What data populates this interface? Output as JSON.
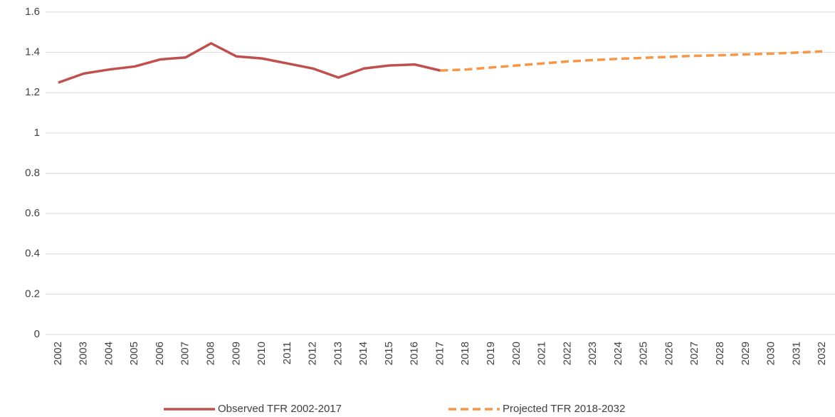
{
  "chart_data": {
    "type": "line",
    "categories": [
      "2002",
      "2003",
      "2004",
      "2005",
      "2006",
      "2007",
      "2008",
      "2009",
      "2010",
      "2011",
      "2012",
      "2013",
      "2014",
      "2015",
      "2016",
      "2017",
      "2018",
      "2019",
      "2020",
      "2021",
      "2022",
      "2023",
      "2024",
      "2025",
      "2026",
      "2027",
      "2028",
      "2029",
      "2030",
      "2031",
      "2032"
    ],
    "series": [
      {
        "name": "Observed TFR 2002-2017",
        "color": "#c0504d",
        "dashed": false,
        "values": [
          1.25,
          1.295,
          1.315,
          1.33,
          1.365,
          1.375,
          1.445,
          1.38,
          1.37,
          1.345,
          1.32,
          1.275,
          1.32,
          1.335,
          1.34,
          1.31,
          null,
          null,
          null,
          null,
          null,
          null,
          null,
          null,
          null,
          null,
          null,
          null,
          null,
          null,
          null
        ]
      },
      {
        "name": "Projected TFR 2018-2032",
        "color": "#f79646",
        "dashed": true,
        "values": [
          null,
          null,
          null,
          null,
          null,
          null,
          null,
          null,
          null,
          null,
          null,
          null,
          null,
          null,
          null,
          1.31,
          1.315,
          1.325,
          1.335,
          1.345,
          1.355,
          1.362,
          1.368,
          1.373,
          1.378,
          1.383,
          1.386,
          1.39,
          1.394,
          1.399,
          1.405
        ]
      }
    ],
    "ylim": [
      0,
      1.6
    ],
    "yticks": [
      0,
      0.2,
      0.4,
      0.6,
      0.8,
      1,
      1.2,
      1.4,
      1.6
    ],
    "grid": true
  }
}
